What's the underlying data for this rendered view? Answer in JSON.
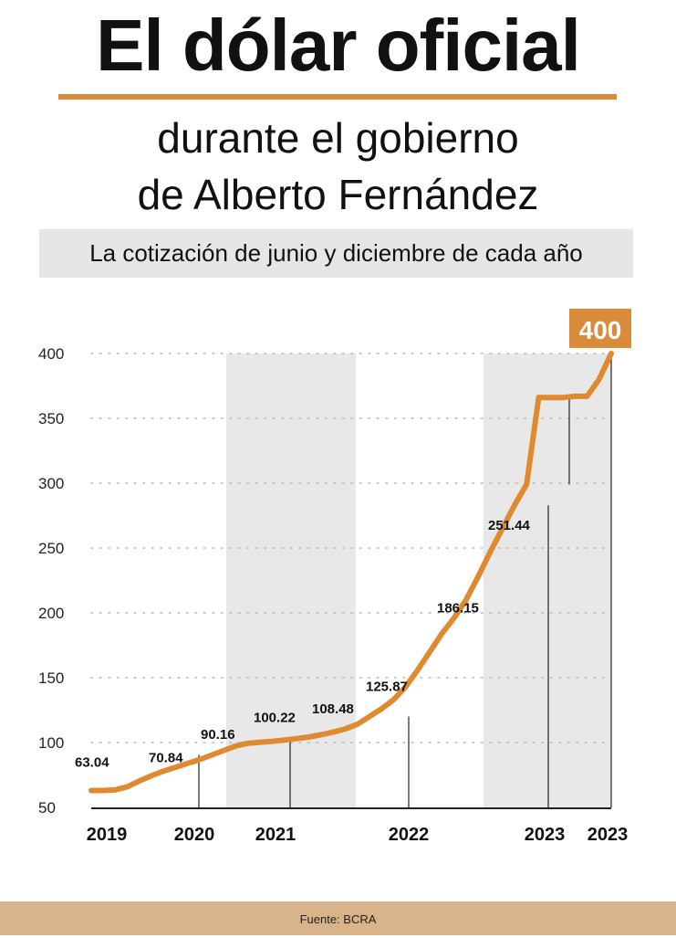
{
  "header": {
    "title": "El dólar oficial",
    "subtitle_line1": "durante el gobierno",
    "subtitle_line2": "de Alberto Fernández",
    "banner": "La cotización de junio y diciembre de cada año"
  },
  "footer": {
    "source": "Fuente: BCRA"
  },
  "colors": {
    "line": "#e08a30",
    "accent": "#d98b3a",
    "shade": "#e8e8e8",
    "grid": "#b5b5b5"
  },
  "chart_data": {
    "type": "line",
    "ylim": [
      50,
      400
    ],
    "yticks": [
      400,
      350,
      300,
      250,
      200,
      150,
      100,
      50
    ],
    "grid": true,
    "year_labels": [
      "2019",
      "2020",
      "2021",
      "2022",
      "2023",
      "2023"
    ],
    "annotations": [
      {
        "label": "63.04",
        "value": 63.04
      },
      {
        "label": "70.84",
        "value": 70.84
      },
      {
        "label": "90.16",
        "value": 90.16
      },
      {
        "label": "100.22",
        "value": 100.22
      },
      {
        "label": "108.48",
        "value": 108.48
      },
      {
        "label": "125.87",
        "value": 125.87
      },
      {
        "label": "186.15",
        "value": 186.15
      },
      {
        "label": "251.44",
        "value": 251.44
      },
      {
        "label": "400",
        "value": 400
      }
    ],
    "series": [
      {
        "values": [
          63,
          63,
          63.5,
          66,
          70.5,
          74.5,
          78,
          81,
          84,
          87,
          90.5,
          94,
          97.5,
          99.5,
          100.3,
          101,
          102,
          103,
          104.3,
          106,
          108,
          110.5,
          114,
          120,
          126,
          133,
          143,
          156,
          170,
          184,
          196,
          210,
          228,
          247,
          265,
          283,
          299,
          366,
          366,
          366,
          367,
          367,
          380,
          400
        ]
      }
    ]
  }
}
